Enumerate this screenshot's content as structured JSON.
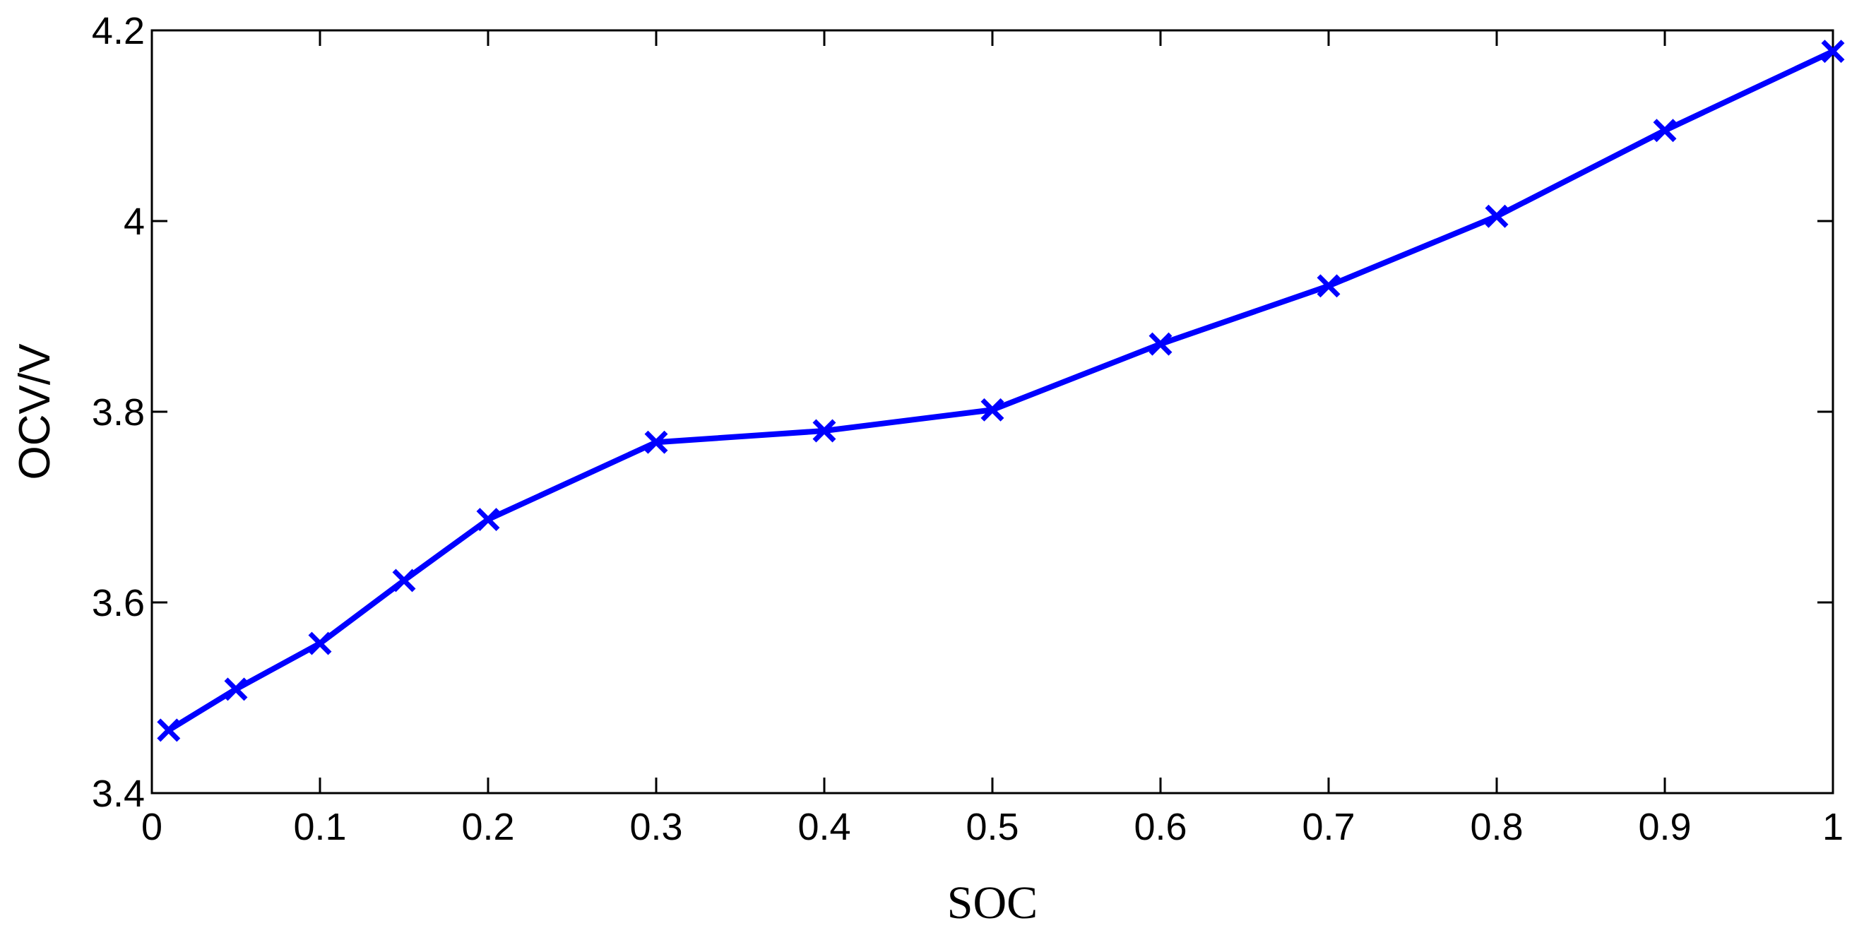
{
  "chart_data": {
    "type": "line",
    "title": "",
    "xlabel": "SOC",
    "ylabel": "OCV/V",
    "xlim": [
      0,
      1
    ],
    "ylim": [
      3.4,
      4.2
    ],
    "xticks": [
      "0",
      "0.1",
      "0.2",
      "0.3",
      "0.4",
      "0.5",
      "0.6",
      "0.7",
      "0.8",
      "0.9",
      "1"
    ],
    "yticks": [
      "3.4",
      "3.6",
      "3.8",
      "4",
      "4.2"
    ],
    "grid": false,
    "series": [
      {
        "color": "#0000ff",
        "marker": "x",
        "x": [
          0.01,
          0.05,
          0.1,
          0.15,
          0.2,
          0.3,
          0.4,
          0.5,
          0.6,
          0.7,
          0.8,
          0.9,
          1.0
        ],
        "y": [
          3.466,
          3.509,
          3.557,
          3.623,
          3.687,
          3.768,
          3.78,
          3.802,
          3.871,
          3.932,
          4.005,
          4.095,
          4.178
        ]
      }
    ]
  }
}
